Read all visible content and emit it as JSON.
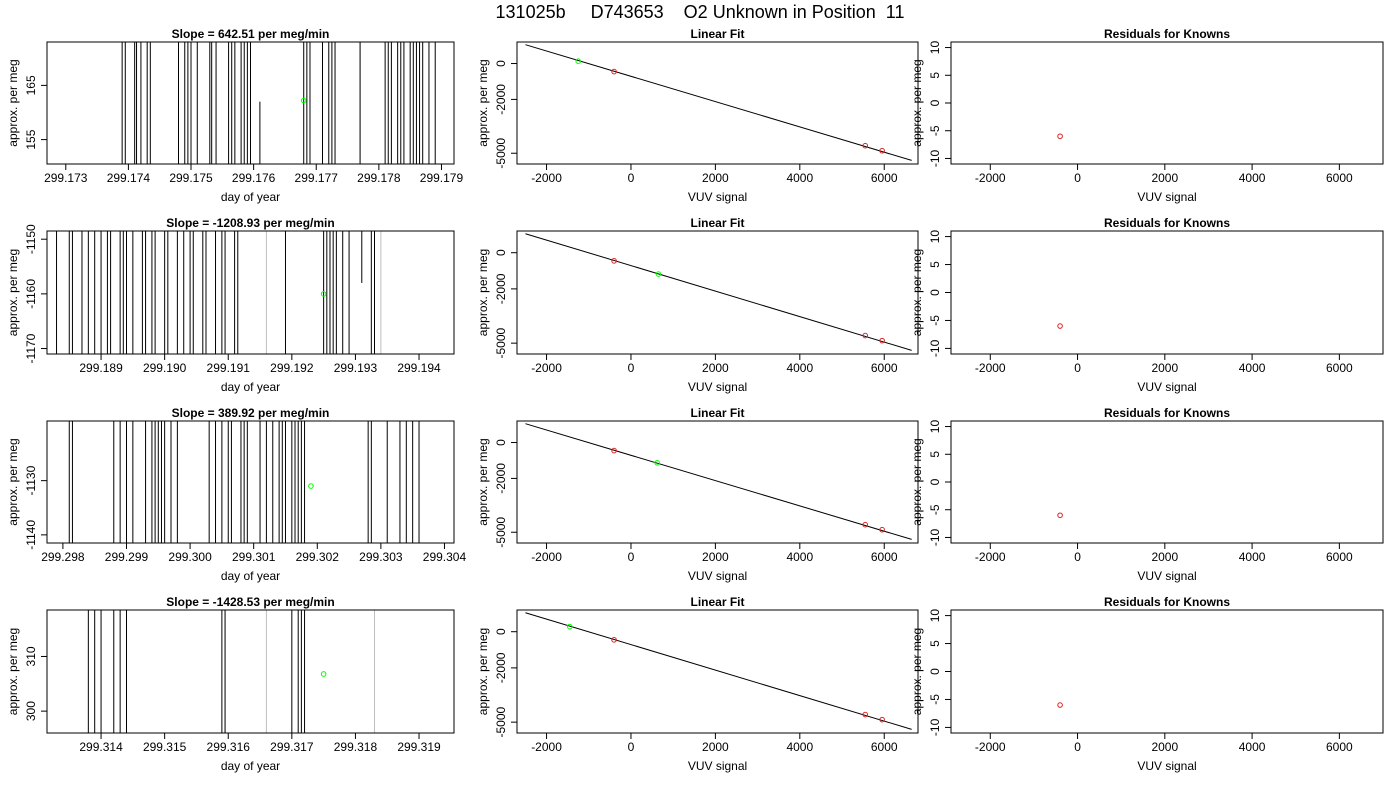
{
  "title": "131025b     D743653    O2 Unknown in Position  11",
  "chart_data": [
    {
      "type": "scatter",
      "panel": "timeseries-row1",
      "title": "Slope =  642.51  per meg/min",
      "xlabel": "day of year",
      "ylabel": "approx. per meg",
      "xlim": [
        299.1727,
        299.1792
      ],
      "ylim": [
        150.5,
        173
      ],
      "xticks": [
        299.173,
        299.174,
        299.175,
        299.176,
        299.177,
        299.178,
        299.179
      ],
      "xtick_labels": [
        "299.173",
        "299.174",
        "299.175",
        "299.176",
        "299.177",
        "299.178",
        "299.179"
      ],
      "yticks": [
        155,
        165
      ],
      "ytick_labels": [
        "155",
        "165"
      ],
      "dark_lines": [
        299.1739,
        299.17395,
        299.1741,
        299.17413,
        299.1742,
        299.1743,
        299.17435,
        299.1748,
        299.1749,
        299.17495,
        299.175,
        299.1751,
        299.1753,
        299.17533,
        299.1754,
        299.1756,
        299.17565,
        299.1757,
        299.1758,
        299.17585,
        299.1759,
        299.17595,
        299.1768,
        299.17685,
        299.1769,
        299.1771,
        299.1772,
        299.17725,
        299.1773,
        299.1777,
        299.1781,
        299.17815,
        299.1782,
        299.1783,
        299.17835,
        299.1784,
        299.1785,
        299.17855,
        299.1786,
        299.17865,
        299.1787,
        299.1788,
        299.1789
      ],
      "gray_lines": [
        299.1777
      ],
      "partial_lines": [
        {
          "x": 299.1761,
          "ybottom": 150.5,
          "ytop": 162
        }
      ],
      "points": [
        {
          "x": 299.1768,
          "y": 162.2
        }
      ]
    },
    {
      "type": "scatter",
      "panel": "timeseries-row2",
      "title": "Slope =  -1208.93  per meg/min",
      "xlabel": "day of year",
      "ylabel": "approx. per meg",
      "xlim": [
        299.18815,
        299.19455
      ],
      "ylim": [
        -1171,
        -1148.5
      ],
      "xticks": [
        299.189,
        299.19,
        299.191,
        299.192,
        299.193,
        299.194
      ],
      "xtick_labels": [
        "299.189",
        "299.190",
        "299.191",
        "299.192",
        "299.193",
        "299.194"
      ],
      "yticks": [
        -1150,
        -1160,
        -1170
      ],
      "ytick_labels": [
        "-1150",
        "-1160",
        "-1170"
      ],
      "dark_lines": [
        299.1883,
        299.1885,
        299.18855,
        299.1887,
        299.1888,
        299.1889,
        299.189,
        299.1891,
        299.18915,
        299.1893,
        299.18935,
        299.1894,
        299.1895,
        299.18965,
        299.1897,
        299.1898,
        299.18985,
        299.19,
        299.19005,
        299.1902,
        299.1903,
        299.1904,
        299.19045,
        299.1906,
        299.19065,
        299.1908,
        299.1909,
        299.19095,
        299.1911,
        299.19115,
        299.1919,
        299.1925,
        299.19255,
        299.1926,
        299.19265,
        299.1927,
        299.1928,
        299.1929,
        299.19325,
        299.1933
      ],
      "gray_lines": [
        299.1916,
        299.1934
      ],
      "partial_lines": [
        {
          "x": 299.1931,
          "ybottom": -1158,
          "ytop": -1148.5
        }
      ],
      "points": [
        {
          "x": 299.1925,
          "y": -1160
        }
      ]
    },
    {
      "type": "scatter",
      "panel": "timeseries-row3",
      "title": "Slope =  389.92  per meg/min",
      "xlabel": "day of year",
      "ylabel": "approx. per meg",
      "xlim": [
        299.29775,
        299.30415
      ],
      "ylim": [
        -1141.5,
        -1119
      ],
      "xticks": [
        299.298,
        299.299,
        299.3,
        299.301,
        299.302,
        299.303,
        299.304
      ],
      "xtick_labels": [
        "299.298",
        "299.299",
        "299.300",
        "299.301",
        "299.302",
        "299.303",
        "299.304"
      ],
      "yticks": [
        -1130,
        -1140
      ],
      "ytick_labels": [
        "-1130",
        "-1140"
      ],
      "dark_lines": [
        299.2981,
        299.29815,
        299.2988,
        299.2989,
        299.299,
        299.2991,
        299.2993,
        299.2994,
        299.29945,
        299.2995,
        299.29955,
        299.2996,
        299.2997,
        299.2998,
        299.3003,
        299.3004,
        299.3005,
        299.3006,
        299.30065,
        299.3008,
        299.30085,
        299.3009,
        299.3011,
        299.3012,
        299.3013,
        299.3014,
        299.30145,
        299.3015,
        299.3016,
        299.30165,
        299.3017,
        299.30175,
        299.3018,
        299.3028,
        299.30285,
        299.3031,
        299.3033,
        299.3034,
        299.3035,
        299.3036
      ],
      "gray_lines": [],
      "partial_lines": [],
      "points": [
        {
          "x": 299.3019,
          "y": -1131
        }
      ]
    },
    {
      "type": "scatter",
      "panel": "timeseries-row4",
      "title": "Slope =  -1428.53  per meg/min",
      "xlabel": "day of year",
      "ylabel": "approx. per meg",
      "xlim": [
        299.31315,
        299.31955
      ],
      "ylim": [
        296,
        318.5
      ],
      "xticks": [
        299.314,
        299.315,
        299.316,
        299.317,
        299.318,
        299.319
      ],
      "xtick_labels": [
        "299.314",
        "299.315",
        "299.316",
        "299.317",
        "299.318",
        "299.319"
      ],
      "yticks": [
        300,
        310
      ],
      "ytick_labels": [
        "300",
        "310"
      ],
      "dark_lines": [
        299.3138,
        299.3139,
        299.314,
        299.3142,
        299.3143,
        299.3144,
        299.3159,
        299.31595,
        299.317,
        299.3171,
        299.31715,
        299.3172
      ],
      "gray_lines": [
        299.3166,
        299.31595,
        299.3183
      ],
      "partial_lines": [],
      "points": [
        {
          "x": 299.3175,
          "y": 306.8
        }
      ]
    },
    {
      "type": "scatter",
      "panel": "fit-row1",
      "title": "Linear Fit",
      "xlabel": "VUV signal",
      "ylabel": "approx. per meg",
      "xlim": [
        -2700,
        6800
      ],
      "ylim": [
        -5600,
        1200
      ],
      "xticks": [
        -2000,
        0,
        2000,
        4000,
        6000
      ],
      "xtick_labels": [
        "-2000",
        "0",
        "2000",
        "4000",
        "6000"
      ],
      "yticks": [
        0,
        -2000,
        -5000
      ],
      "ytick_labels": [
        "0",
        "-2000",
        "-5000"
      ],
      "fit_line": {
        "x1": -2500,
        "y1": 1050,
        "x2": 6650,
        "y2": -5400
      },
      "known_points": [
        {
          "x": -400,
          "y": -450
        },
        {
          "x": 5550,
          "y": -4580
        },
        {
          "x": 5950,
          "y": -4860
        }
      ],
      "unknown_points": [
        {
          "x": -1250,
          "y": 130
        }
      ]
    },
    {
      "type": "scatter",
      "panel": "fit-row2",
      "title": "Linear Fit",
      "xlabel": "VUV signal",
      "ylabel": "approx. per meg",
      "xlim": [
        -2700,
        6800
      ],
      "ylim": [
        -5600,
        1200
      ],
      "xticks": [
        -2000,
        0,
        2000,
        4000,
        6000
      ],
      "xtick_labels": [
        "-2000",
        "0",
        "2000",
        "4000",
        "6000"
      ],
      "yticks": [
        0,
        -2000,
        -5000
      ],
      "ytick_labels": [
        "0",
        "-2000",
        "-5000"
      ],
      "fit_line": {
        "x1": -2500,
        "y1": 1050,
        "x2": 6650,
        "y2": -5400
      },
      "known_points": [
        {
          "x": -400,
          "y": -450
        },
        {
          "x": 5550,
          "y": -4580
        },
        {
          "x": 5950,
          "y": -4860
        }
      ],
      "unknown_points": [
        {
          "x": 650,
          "y": -1180
        }
      ]
    },
    {
      "type": "scatter",
      "panel": "fit-row3",
      "title": "Linear Fit",
      "xlabel": "VUV signal",
      "ylabel": "approx. per meg",
      "xlim": [
        -2700,
        6800
      ],
      "ylim": [
        -5600,
        1200
      ],
      "xticks": [
        -2000,
        0,
        2000,
        4000,
        6000
      ],
      "xtick_labels": [
        "-2000",
        "0",
        "2000",
        "4000",
        "6000"
      ],
      "yticks": [
        0,
        -2000,
        -5000
      ],
      "ytick_labels": [
        "0",
        "-2000",
        "-5000"
      ],
      "fit_line": {
        "x1": -2500,
        "y1": 1050,
        "x2": 6650,
        "y2": -5400
      },
      "known_points": [
        {
          "x": -400,
          "y": -450
        },
        {
          "x": 5550,
          "y": -4580
        },
        {
          "x": 5950,
          "y": -4860
        }
      ],
      "unknown_points": [
        {
          "x": 620,
          "y": -1130
        }
      ]
    },
    {
      "type": "scatter",
      "panel": "fit-row4",
      "title": "Linear Fit",
      "xlabel": "VUV signal",
      "ylabel": "approx. per meg",
      "xlim": [
        -2700,
        6800
      ],
      "ylim": [
        -5600,
        1200
      ],
      "xticks": [
        -2000,
        0,
        2000,
        4000,
        6000
      ],
      "xtick_labels": [
        "-2000",
        "0",
        "2000",
        "4000",
        "6000"
      ],
      "yticks": [
        0,
        -2000,
        -5000
      ],
      "ytick_labels": [
        "0",
        "-2000",
        "-5000"
      ],
      "fit_line": {
        "x1": -2500,
        "y1": 1050,
        "x2": 6650,
        "y2": -5400
      },
      "known_points": [
        {
          "x": -400,
          "y": -450
        },
        {
          "x": 5550,
          "y": -4580
        },
        {
          "x": 5950,
          "y": -4860
        }
      ],
      "unknown_points": [
        {
          "x": -1450,
          "y": 280
        }
      ]
    },
    {
      "type": "scatter",
      "panel": "residuals-row1",
      "title": "Residuals for Knowns",
      "xlabel": "VUV signal",
      "ylabel": "approx. per meg",
      "xlim": [
        -2900,
        7000
      ],
      "ylim": [
        -11,
        11
      ],
      "xticks": [
        -2000,
        0,
        2000,
        4000,
        6000
      ],
      "xtick_labels": [
        "-2000",
        "0",
        "2000",
        "4000",
        "6000"
      ],
      "yticks": [
        10,
        5,
        0,
        -5,
        -10
      ],
      "ytick_labels": [
        "10",
        "5",
        "0",
        "-5",
        "-10"
      ],
      "points": [
        {
          "x": -400,
          "y": -6
        }
      ]
    },
    {
      "type": "scatter",
      "panel": "residuals-row2",
      "title": "Residuals for Knowns",
      "xlabel": "VUV signal",
      "ylabel": "approx. per meg",
      "xlim": [
        -2900,
        7000
      ],
      "ylim": [
        -11,
        11
      ],
      "xticks": [
        -2000,
        0,
        2000,
        4000,
        6000
      ],
      "xtick_labels": [
        "-2000",
        "0",
        "2000",
        "4000",
        "6000"
      ],
      "yticks": [
        10,
        5,
        0,
        -5,
        -10
      ],
      "ytick_labels": [
        "10",
        "5",
        "0",
        "-5",
        "-10"
      ],
      "points": [
        {
          "x": -400,
          "y": -6
        }
      ]
    },
    {
      "type": "scatter",
      "panel": "residuals-row3",
      "title": "Residuals for Knowns",
      "xlabel": "VUV signal",
      "ylabel": "approx. per meg",
      "xlim": [
        -2900,
        7000
      ],
      "ylim": [
        -11,
        11
      ],
      "xticks": [
        -2000,
        0,
        2000,
        4000,
        6000
      ],
      "xtick_labels": [
        "-2000",
        "0",
        "2000",
        "4000",
        "6000"
      ],
      "yticks": [
        10,
        5,
        0,
        -5,
        -10
      ],
      "ytick_labels": [
        "10",
        "5",
        "0",
        "-5",
        "-10"
      ],
      "points": [
        {
          "x": -400,
          "y": -6
        }
      ]
    },
    {
      "type": "scatter",
      "panel": "residuals-row4",
      "title": "Residuals for Knowns",
      "xlabel": "VUV signal",
      "ylabel": "approx. per meg",
      "xlim": [
        -2900,
        7000
      ],
      "ylim": [
        -11,
        11
      ],
      "xticks": [
        -2000,
        0,
        2000,
        4000,
        6000
      ],
      "xtick_labels": [
        "-2000",
        "0",
        "2000",
        "4000",
        "6000"
      ],
      "yticks": [
        10,
        5,
        0,
        -5,
        -10
      ],
      "ytick_labels": [
        "10",
        "5",
        "0",
        "-5",
        "-10"
      ],
      "points": [
        {
          "x": -400,
          "y": -6
        }
      ]
    }
  ],
  "colors": {
    "dark_line": "#000000",
    "gray_line": "#bebebe",
    "unknown_point": "#00ff00",
    "known_point": "#dd2222",
    "fit_line": "#000000"
  }
}
